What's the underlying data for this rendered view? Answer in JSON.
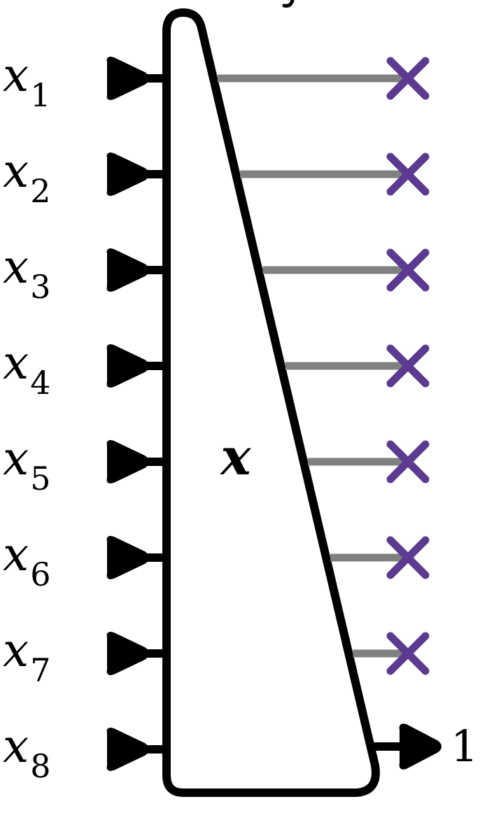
{
  "diagram": {
    "center_label": "x",
    "inputs": [
      {
        "base": "x",
        "sub": "1"
      },
      {
        "base": "x",
        "sub": "2"
      },
      {
        "base": "x",
        "sub": "3"
      },
      {
        "base": "x",
        "sub": "4"
      },
      {
        "base": "x",
        "sub": "5"
      },
      {
        "base": "x",
        "sub": "6"
      },
      {
        "base": "x",
        "sub": "7"
      },
      {
        "base": "x",
        "sub": "8"
      }
    ],
    "discarded_outputs": 7,
    "output_label": "1",
    "colors": {
      "stroke": "#000000",
      "wire": "#808080",
      "cross": "#5b3a8f",
      "background": "#ffffff"
    }
  }
}
